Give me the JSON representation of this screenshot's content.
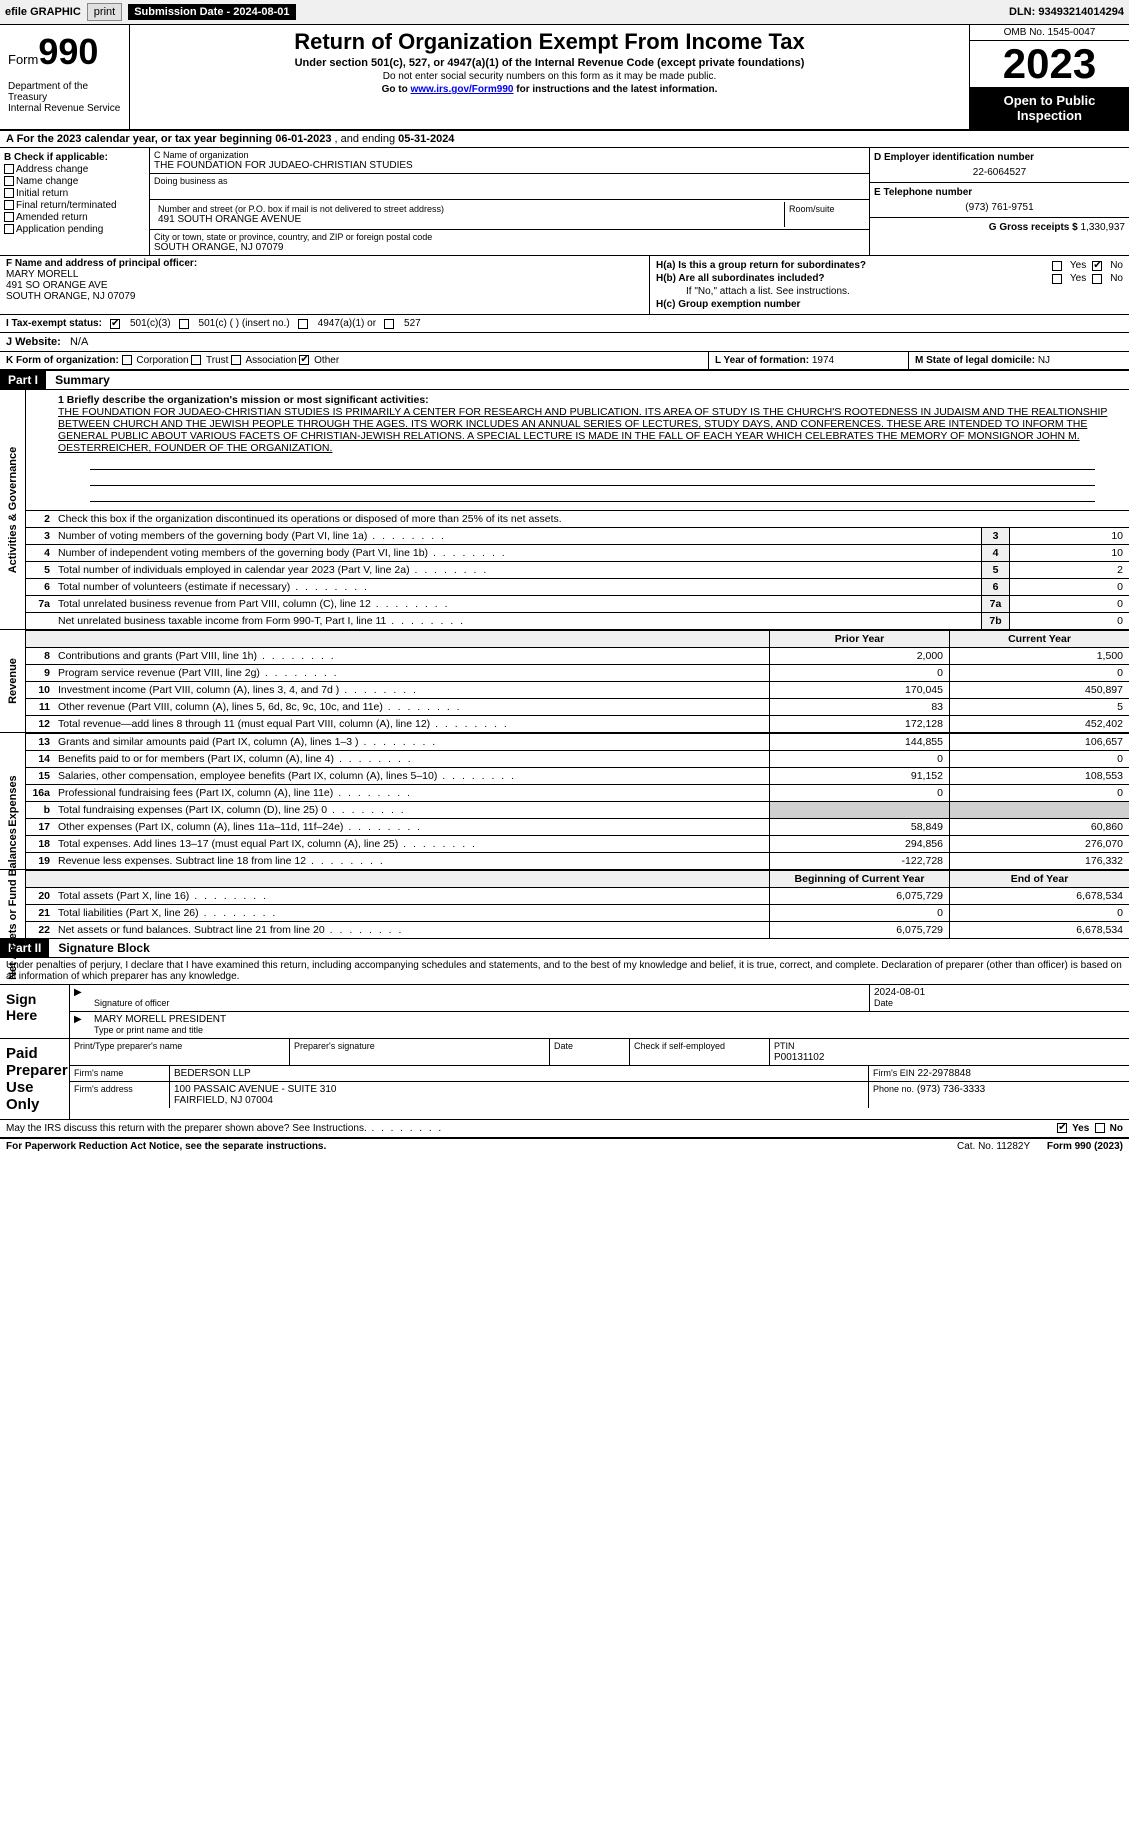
{
  "topbar": {
    "efile": "efile GRAPHIC",
    "print": "print",
    "subdate_lbl": "Submission Date - ",
    "subdate": "2024-08-01",
    "dln_lbl": "DLN: ",
    "dln": "93493214014294"
  },
  "header": {
    "form_prefix": "Form",
    "form_num": "990",
    "dept": "Department of the Treasury\nInternal Revenue Service",
    "title": "Return of Organization Exempt From Income Tax",
    "sub1": "Under section 501(c), 527, or 4947(a)(1) of the Internal Revenue Code (except private foundations)",
    "sub2": "Do not enter social security numbers on this form as it may be made public.",
    "sub3": "Go to www.irs.gov/Form990 for instructions and the latest information.",
    "link": "www.irs.gov/Form990",
    "omb": "OMB No. 1545-0047",
    "year": "2023",
    "open": "Open to Public Inspection"
  },
  "rowA": {
    "prefix": "A For the 2023 calendar year, or tax year beginning ",
    "begin": "06-01-2023",
    "mid": " , and ending ",
    "end": "05-31-2024"
  },
  "B": {
    "hdr": "B Check if applicable:",
    "opts": [
      "Address change",
      "Name change",
      "Initial return",
      "Final return/terminated",
      "Amended return",
      "Application pending"
    ]
  },
  "C": {
    "name_lbl": "C Name of organization",
    "name": "THE FOUNDATION FOR JUDAEO-CHRISTIAN STUDIES",
    "dba_lbl": "Doing business as",
    "addr_lbl": "Number and street (or P.O. box if mail is not delivered to street address)",
    "addr": "491 SOUTH ORANGE AVENUE",
    "room_lbl": "Room/suite",
    "city_lbl": "City or town, state or province, country, and ZIP or foreign postal code",
    "city": "SOUTH ORANGE, NJ  07079"
  },
  "D": {
    "lbl": "D Employer identification number",
    "ein": "22-6064527",
    "E_lbl": "E Telephone number",
    "phone": "(973) 761-9751",
    "G_lbl": "G Gross receipts $ ",
    "gross": "1,330,937"
  },
  "F": {
    "lbl": "F Name and address of principal officer:",
    "name": "MARY MORELL",
    "addr1": "491 SO ORANGE AVE",
    "addr2": "SOUTH ORANGE, NJ  07079"
  },
  "H": {
    "a": "H(a)  Is this a group return for subordinates?",
    "b": "H(b)  Are all subordinates included?",
    "b2": "If \"No,\" attach a list. See instructions.",
    "c": "H(c)  Group exemption number",
    "yes": "Yes",
    "no": "No"
  },
  "I": {
    "lbl": "I  Tax-exempt status:",
    "o1": "501(c)(3)",
    "o2": "501(c) (  ) (insert no.)",
    "o3": "4947(a)(1) or",
    "o4": "527"
  },
  "J": {
    "lbl": "J  Website:",
    "val": "N/A"
  },
  "K": {
    "lbl": "K Form of organization:",
    "o1": "Corporation",
    "o2": "Trust",
    "o3": "Association",
    "o4": "Other"
  },
  "L": {
    "lbl": "L Year of formation: ",
    "val": "1974"
  },
  "M": {
    "lbl": "M State of legal domicile: ",
    "val": "NJ"
  },
  "partI": {
    "hdr": "Part I",
    "title": "Summary"
  },
  "summary": {
    "s1_lbl": "1  Briefly describe the organization's mission or most significant activities:",
    "mission": "THE FOUNDATION FOR JUDAEO-CHRISTIAN STUDIES IS PRIMARILY A CENTER FOR RESEARCH AND PUBLICATION. ITS AREA OF STUDY IS THE CHURCH'S ROOTEDNESS IN JUDAISM AND THE REALTIONSHIP BETWEEN CHURCH AND THE JEWISH PEOPLE THROUGH THE AGES. ITS WORK INCLUDES AN ANNUAL SERIES OF LECTURES, STUDY DAYS, AND CONFERENCES. THESE ARE INTENDED TO INFORM THE GENERAL PUBLIC ABOUT VARIOUS FACETS OF CHRISTIAN-JEWISH RELATIONS. A SPECIAL LECTURE IS MADE IN THE FALL OF EACH YEAR WHICH CELEBRATES THE MEMORY OF MONSIGNOR JOHN M. OESTERREICHER, FOUNDER OF THE ORGANIZATION.",
    "s2": "Check this box       if the organization discontinued its operations or disposed of more than 25% of its net assets.",
    "sidebar_gov": "Activities & Governance",
    "sidebar_rev": "Revenue",
    "sidebar_exp": "Expenses",
    "sidebar_net": "Net Assets or Fund Balances",
    "lines_gov": [
      {
        "n": "3",
        "t": "Number of voting members of the governing body (Part VI, line 1a)",
        "c": "3",
        "v": "10"
      },
      {
        "n": "4",
        "t": "Number of independent voting members of the governing body (Part VI, line 1b)",
        "c": "4",
        "v": "10"
      },
      {
        "n": "5",
        "t": "Total number of individuals employed in calendar year 2023 (Part V, line 2a)",
        "c": "5",
        "v": "2"
      },
      {
        "n": "6",
        "t": "Total number of volunteers (estimate if necessary)",
        "c": "6",
        "v": "0"
      },
      {
        "n": "7a",
        "t": "Total unrelated business revenue from Part VIII, column (C), line 12",
        "c": "7a",
        "v": "0"
      },
      {
        "n": "",
        "t": "Net unrelated business taxable income from Form 990-T, Part I, line 11",
        "c": "7b",
        "v": "0"
      }
    ],
    "col_hdrs": {
      "prior": "Prior Year",
      "current": "Current Year"
    },
    "lines_rev": [
      {
        "n": "8",
        "t": "Contributions and grants (Part VIII, line 1h)",
        "p": "2,000",
        "c": "1,500"
      },
      {
        "n": "9",
        "t": "Program service revenue (Part VIII, line 2g)",
        "p": "0",
        "c": "0"
      },
      {
        "n": "10",
        "t": "Investment income (Part VIII, column (A), lines 3, 4, and 7d )",
        "p": "170,045",
        "c": "450,897"
      },
      {
        "n": "11",
        "t": "Other revenue (Part VIII, column (A), lines 5, 6d, 8c, 9c, 10c, and 11e)",
        "p": "83",
        "c": "5"
      },
      {
        "n": "12",
        "t": "Total revenue—add lines 8 through 11 (must equal Part VIII, column (A), line 12)",
        "p": "172,128",
        "c": "452,402"
      }
    ],
    "lines_exp": [
      {
        "n": "13",
        "t": "Grants and similar amounts paid (Part IX, column (A), lines 1–3 )",
        "p": "144,855",
        "c": "106,657"
      },
      {
        "n": "14",
        "t": "Benefits paid to or for members (Part IX, column (A), line 4)",
        "p": "0",
        "c": "0"
      },
      {
        "n": "15",
        "t": "Salaries, other compensation, employee benefits (Part IX, column (A), lines 5–10)",
        "p": "91,152",
        "c": "108,553"
      },
      {
        "n": "16a",
        "t": "Professional fundraising fees (Part IX, column (A), line 11e)",
        "p": "0",
        "c": "0"
      },
      {
        "n": "b",
        "t": "Total fundraising expenses (Part IX, column (D), line 25) 0",
        "p": "",
        "c": "",
        "shade": true
      },
      {
        "n": "17",
        "t": "Other expenses (Part IX, column (A), lines 11a–11d, 11f–24e)",
        "p": "58,849",
        "c": "60,860"
      },
      {
        "n": "18",
        "t": "Total expenses. Add lines 13–17 (must equal Part IX, column (A), line 25)",
        "p": "294,856",
        "c": "276,070"
      },
      {
        "n": "19",
        "t": "Revenue less expenses. Subtract line 18 from line 12",
        "p": "-122,728",
        "c": "176,332"
      }
    ],
    "net_hdrs": {
      "begin": "Beginning of Current Year",
      "end": "End of Year"
    },
    "lines_net": [
      {
        "n": "20",
        "t": "Total assets (Part X, line 16)",
        "p": "6,075,729",
        "c": "6,678,534"
      },
      {
        "n": "21",
        "t": "Total liabilities (Part X, line 26)",
        "p": "0",
        "c": "0"
      },
      {
        "n": "22",
        "t": "Net assets or fund balances. Subtract line 21 from line 20",
        "p": "6,075,729",
        "c": "6,678,534"
      }
    ]
  },
  "partII": {
    "hdr": "Part II",
    "title": "Signature Block"
  },
  "sig": {
    "decl": "Under penalties of perjury, I declare that I have examined this return, including accompanying schedules and statements, and to the best of my knowledge and belief, it is true, correct, and complete. Declaration of preparer (other than officer) is based on all information of which preparer has any knowledge.",
    "sign_here": "Sign Here",
    "sig_off_lbl": "Signature of officer",
    "date_lbl": "Date",
    "date": "2024-08-01",
    "name": "MARY MORELL PRESIDENT",
    "name_lbl": "Type or print name and title",
    "paid": "Paid Preparer Use Only",
    "pp_name_lbl": "Print/Type preparer's name",
    "pp_sig_lbl": "Preparer's signature",
    "pp_date_lbl": "Date",
    "pp_check": "Check        if self-employed",
    "ptin_lbl": "PTIN",
    "ptin": "P00131102",
    "firm_lbl": "Firm's name",
    "firm": "BEDERSON LLP",
    "firm_ein_lbl": "Firm's EIN",
    "firm_ein": "22-2978848",
    "firm_addr_lbl": "Firm's address",
    "firm_addr1": "100 PASSAIC AVENUE - SUITE 310",
    "firm_addr2": "FAIRFIELD, NJ  07004",
    "phone_lbl": "Phone no.",
    "phone": "(973) 736-3333",
    "discuss": "May the IRS discuss this return with the preparer shown above? See Instructions.",
    "yes": "Yes",
    "no": "No"
  },
  "footer": {
    "pra": "For Paperwork Reduction Act Notice, see the separate instructions.",
    "cat": "Cat. No. 11282Y",
    "form": "Form 990 (2023)"
  }
}
